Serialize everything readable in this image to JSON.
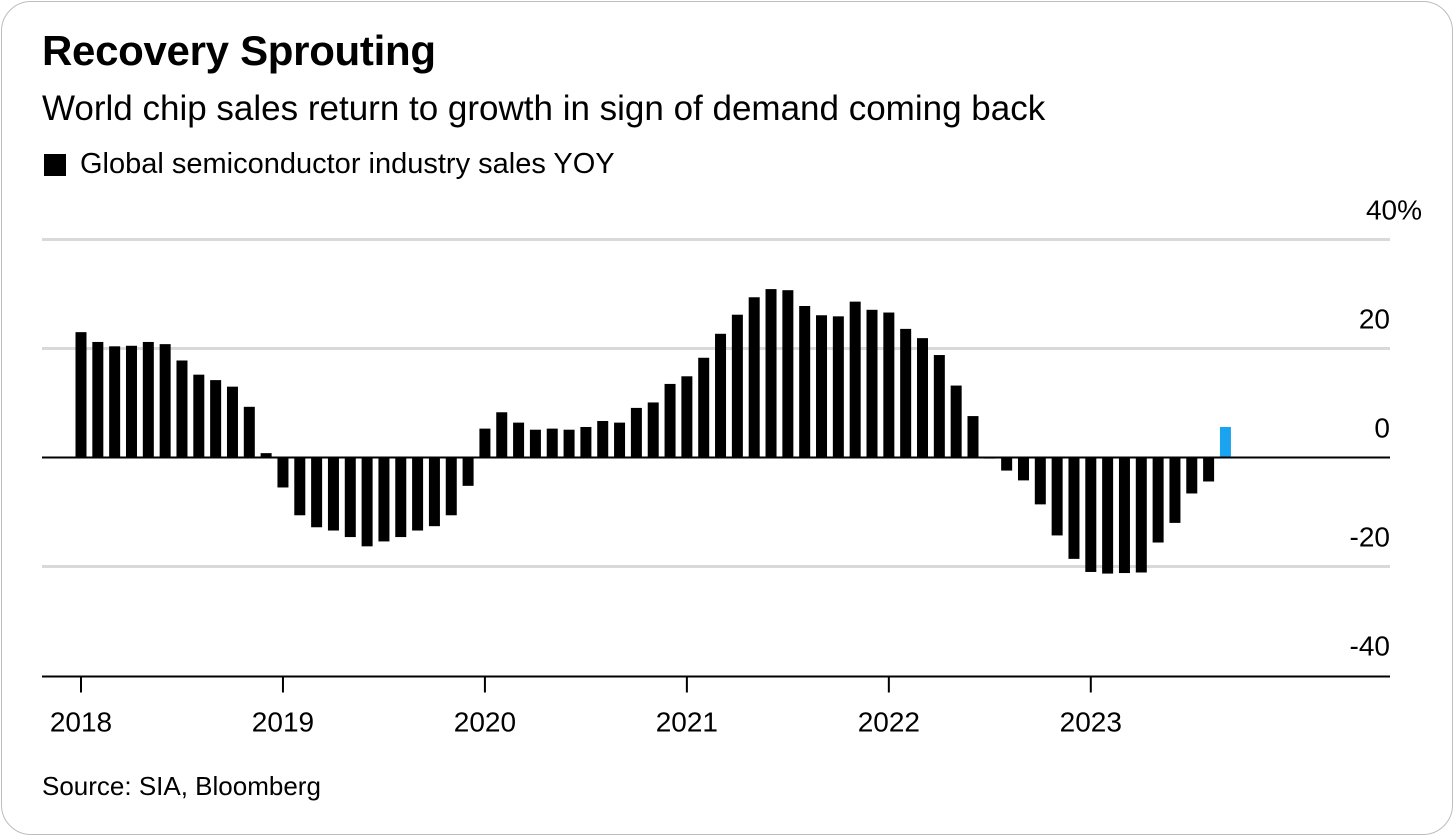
{
  "header": {
    "title": "Recovery Sprouting",
    "subtitle": "World chip sales return to growth in sign of demand coming back"
  },
  "footer": {
    "source": "Source: SIA, Bloomberg"
  },
  "colors": {
    "bar": "#000000",
    "highlight": "#1aa3ef",
    "grid": "#d9d9d9",
    "axis": "#000000"
  },
  "chart_data": {
    "type": "bar",
    "title": "Recovery Sprouting",
    "subtitle": "World chip sales return to growth in sign of demand coming back",
    "series": [
      {
        "name": "Global semiconductor industry sales YOY",
        "start_month": "2018-01",
        "frequency": "monthly",
        "values": [
          23,
          21.2,
          20.4,
          20.5,
          21.2,
          20.8,
          17.8,
          15.2,
          14.2,
          13,
          9.3,
          0.8,
          -5.5,
          -10.6,
          -12.8,
          -13.4,
          -14.6,
          -16.3,
          -15.4,
          -14.6,
          -13.4,
          -12.6,
          -10.6,
          -5.2,
          5.3,
          8.3,
          6.4,
          5.1,
          5.3,
          5.1,
          5.6,
          6.7,
          6.4,
          9.1,
          10.1,
          13.5,
          14.9,
          18.3,
          22.7,
          26.2,
          29.4,
          30.9,
          30.7,
          27.8,
          26.1,
          25.9,
          28.6,
          27.1,
          26.6,
          23.6,
          21.9,
          18.8,
          13.2,
          7.6,
          -0.2,
          -2.4,
          -4.2,
          -8.6,
          -14.3,
          -18.6,
          -21,
          -21.3,
          -21.2,
          -21.1,
          -15.6,
          -12,
          -6.6,
          -4.4,
          5.6
        ],
        "highlight_index": 68
      }
    ],
    "x_tick_labels": [
      "2018",
      "2019",
      "2020",
      "2021",
      "2022",
      "2023"
    ],
    "y_ticks": [
      40,
      20,
      0,
      -20,
      -40
    ],
    "y_tick_labels": [
      "40%",
      "20",
      "0",
      "-20",
      "-40"
    ],
    "ylim": [
      -40,
      40
    ],
    "xlim": [
      "2018-01",
      "2024-08"
    ],
    "grid": true,
    "y_axis_side": "right",
    "legend_position": "top-left"
  }
}
